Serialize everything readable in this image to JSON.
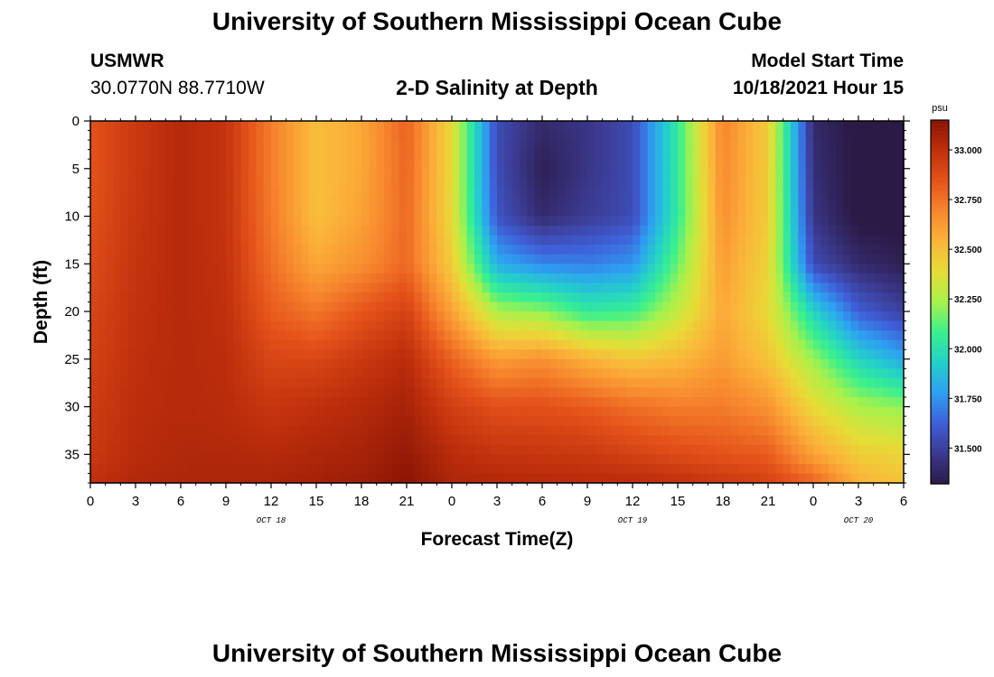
{
  "title": "University of Southern Mississippi Ocean Cube",
  "footer_title": "University of Southern Mississippi Ocean Cube",
  "station": {
    "name": "USMWR",
    "coords": "30.0770N  88.7710W"
  },
  "model": {
    "label": "Model Start Time",
    "start": "10/18/2021 Hour 15"
  },
  "plot_title": "2-D Salinity at Depth",
  "chart_data": {
    "type": "heatmap",
    "title": "2-D Salinity at Depth",
    "xlabel": "Forecast Time(Z)",
    "ylabel": "Depth (ft)",
    "x_tick_labels": [
      "0",
      "3",
      "6",
      "9",
      "12",
      "15",
      "18",
      "21",
      "0",
      "3",
      "6",
      "9",
      "12",
      "15",
      "18",
      "21",
      "0",
      "3",
      "6"
    ],
    "x_range_hours": [
      0,
      54
    ],
    "date_labels": [
      {
        "text": "OCT 18",
        "hour": 12
      },
      {
        "text": "OCT 19",
        "hour": 36
      },
      {
        "text": "OCT 20",
        "hour": 51
      }
    ],
    "y_ticks": [
      0,
      5,
      10,
      15,
      20,
      25,
      30,
      35
    ],
    "y_range": [
      0,
      38
    ],
    "y_inverted": true,
    "colorbar": {
      "unit": "psu",
      "range": [
        31.32,
        33.15
      ],
      "ticks": [
        "33.000",
        "32.750",
        "32.500",
        "32.250",
        "32.000",
        "31.750",
        "31.500"
      ],
      "tick_values": [
        33.0,
        32.75,
        32.5,
        32.25,
        32.0,
        31.75,
        31.5
      ],
      "colormap": [
        "#2b1a45",
        "#3c3a90",
        "#3f5fd8",
        "#2ea0f2",
        "#24d0c9",
        "#3af08e",
        "#a8f14b",
        "#e6dd37",
        "#fbb43a",
        "#f7862e",
        "#e5531b",
        "#c0300d",
        "#8a1505"
      ]
    },
    "time_hours": [
      0,
      3,
      6,
      9,
      12,
      15,
      18,
      21,
      24,
      27,
      30,
      33,
      36,
      39,
      42,
      45,
      48,
      51,
      54
    ],
    "depths_ft": [
      0,
      5,
      10,
      15,
      20,
      25,
      30,
      35,
      38
    ],
    "salinity_psu": [
      [
        32.85,
        32.85,
        32.86,
        32.88,
        32.9,
        32.92,
        32.94,
        32.96,
        33.0
      ],
      [
        32.96,
        32.96,
        32.97,
        32.98,
        32.99,
        33.0,
        33.01,
        33.02,
        33.04
      ],
      [
        33.03,
        33.03,
        33.03,
        33.03,
        33.03,
        33.03,
        33.03,
        33.04,
        33.05
      ],
      [
        32.98,
        32.98,
        32.98,
        32.99,
        33.0,
        33.01,
        33.02,
        33.04,
        33.06
      ],
      [
        32.72,
        32.72,
        32.73,
        32.76,
        32.82,
        32.9,
        32.97,
        33.03,
        33.06
      ],
      [
        32.5,
        32.5,
        32.5,
        32.58,
        32.74,
        32.9,
        33.0,
        33.05,
        33.08
      ],
      [
        32.58,
        32.58,
        32.6,
        32.66,
        32.84,
        32.96,
        33.03,
        33.07,
        33.1
      ],
      [
        32.8,
        32.79,
        32.78,
        32.78,
        32.92,
        33.02,
        33.07,
        33.12,
        33.15
      ],
      [
        32.4,
        32.4,
        32.4,
        32.45,
        32.6,
        32.8,
        32.93,
        33.02,
        33.05
      ],
      [
        31.55,
        31.55,
        31.58,
        31.82,
        32.25,
        32.62,
        32.86,
        32.98,
        33.04
      ],
      [
        31.4,
        31.35,
        31.4,
        31.72,
        32.2,
        32.66,
        32.86,
        32.97,
        33.03
      ],
      [
        31.45,
        31.45,
        31.48,
        31.7,
        32.05,
        32.55,
        32.82,
        32.96,
        33.02
      ],
      [
        31.55,
        31.55,
        31.55,
        31.75,
        32.08,
        32.48,
        32.76,
        32.92,
        33.02
      ],
      [
        32.05,
        32.05,
        32.05,
        32.15,
        32.3,
        32.52,
        32.72,
        32.88,
        33.0
      ],
      [
        32.7,
        32.68,
        32.66,
        32.62,
        32.58,
        32.62,
        32.72,
        32.85,
        32.96
      ],
      [
        32.45,
        32.45,
        32.45,
        32.42,
        32.4,
        32.48,
        32.65,
        32.82,
        32.92
      ],
      [
        31.4,
        31.42,
        31.45,
        31.55,
        31.95,
        32.22,
        32.4,
        32.6,
        32.8
      ],
      [
        31.3,
        31.3,
        31.3,
        31.4,
        31.62,
        31.95,
        32.25,
        32.45,
        32.55
      ],
      [
        31.3,
        31.3,
        31.3,
        31.35,
        31.5,
        31.8,
        32.2,
        32.42,
        32.48
      ]
    ]
  }
}
